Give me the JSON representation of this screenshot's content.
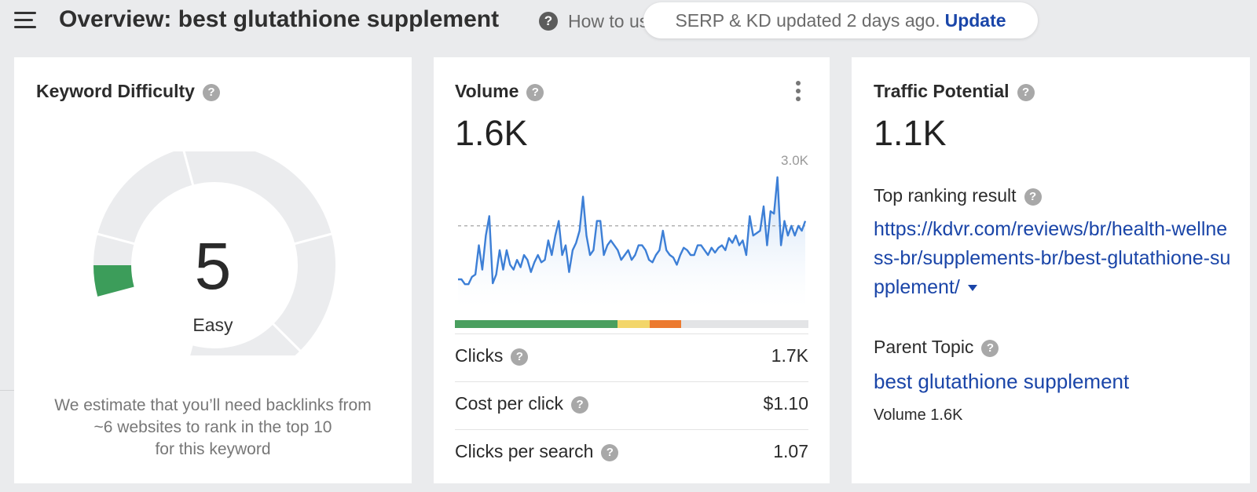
{
  "header": {
    "title": "Overview: best glutathione supplement",
    "how_to": "How to use",
    "serp_status": "SERP & KD updated 2 days ago.",
    "update_label": "Update"
  },
  "kd": {
    "title": "Keyword Difficulty",
    "value": "5",
    "label": "Easy",
    "description_line1": "We estimate that you’ll need backlinks from",
    "description_line2": "~6 websites to rank in the top 10",
    "description_line3": "for this keyword",
    "gauge_fill_fraction": 0.05,
    "fill_color": "#3c9d5a"
  },
  "volume": {
    "title": "Volume",
    "value": "1.6K",
    "chart_max_label": "3.0K",
    "clicks_label": "Clicks",
    "clicks_value": "1.7K",
    "cpc_label": "Cost per click",
    "cpc_value": "$1.10",
    "cps_label": "Clicks per search",
    "cps_value": "1.07",
    "click_distribution": [
      {
        "color": "#4a9f5f",
        "fraction": 0.46
      },
      {
        "color": "#f3d66a",
        "fraction": 0.09
      },
      {
        "color": "#ec7a2f",
        "fraction": 0.09
      }
    ]
  },
  "chart_data": {
    "type": "area",
    "ylim": [
      0,
      3000
    ],
    "values": [
      500,
      500,
      400,
      400,
      550,
      600,
      1200,
      700,
      1400,
      1800,
      420,
      600,
      1100,
      700,
      1100,
      800,
      700,
      900,
      750,
      1000,
      900,
      650,
      850,
      1000,
      850,
      900,
      1300,
      1000,
      1400,
      1700,
      1000,
      1200,
      650,
      1100,
      1250,
      1500,
      2200,
      1400,
      1000,
      1100,
      1700,
      1700,
      1000,
      1200,
      1300,
      1200,
      1100,
      900,
      1000,
      1100,
      900,
      1000,
      1200,
      1200,
      1100,
      900,
      850,
      1000,
      1100,
      1500,
      1100,
      1000,
      950,
      800,
      1000,
      1150,
      1100,
      1000,
      1000,
      1200,
      1200,
      1100,
      1000,
      1150,
      1050,
      1150,
      1200,
      1100,
      1350,
      1250,
      1400,
      1200,
      1300,
      1000,
      1800,
      1400,
      1450,
      1500,
      2000,
      1200,
      1900,
      1850,
      2600,
      1200,
      1700,
      1400,
      1600,
      1400,
      1600,
      1500,
      1700
    ],
    "average": 1600,
    "line_color": "#3d7fd6"
  },
  "traffic": {
    "title": "Traffic Potential",
    "value": "1.1K",
    "top_result_label": "Top ranking result",
    "top_result_url": "https://kdvr.com/reviews/br/health-wellness-br/supplements-br/best-glutathione-supplement/",
    "parent_topic_label": "Parent Topic",
    "parent_topic": "best glutathione supplement",
    "parent_volume": "Volume 1.6K"
  }
}
